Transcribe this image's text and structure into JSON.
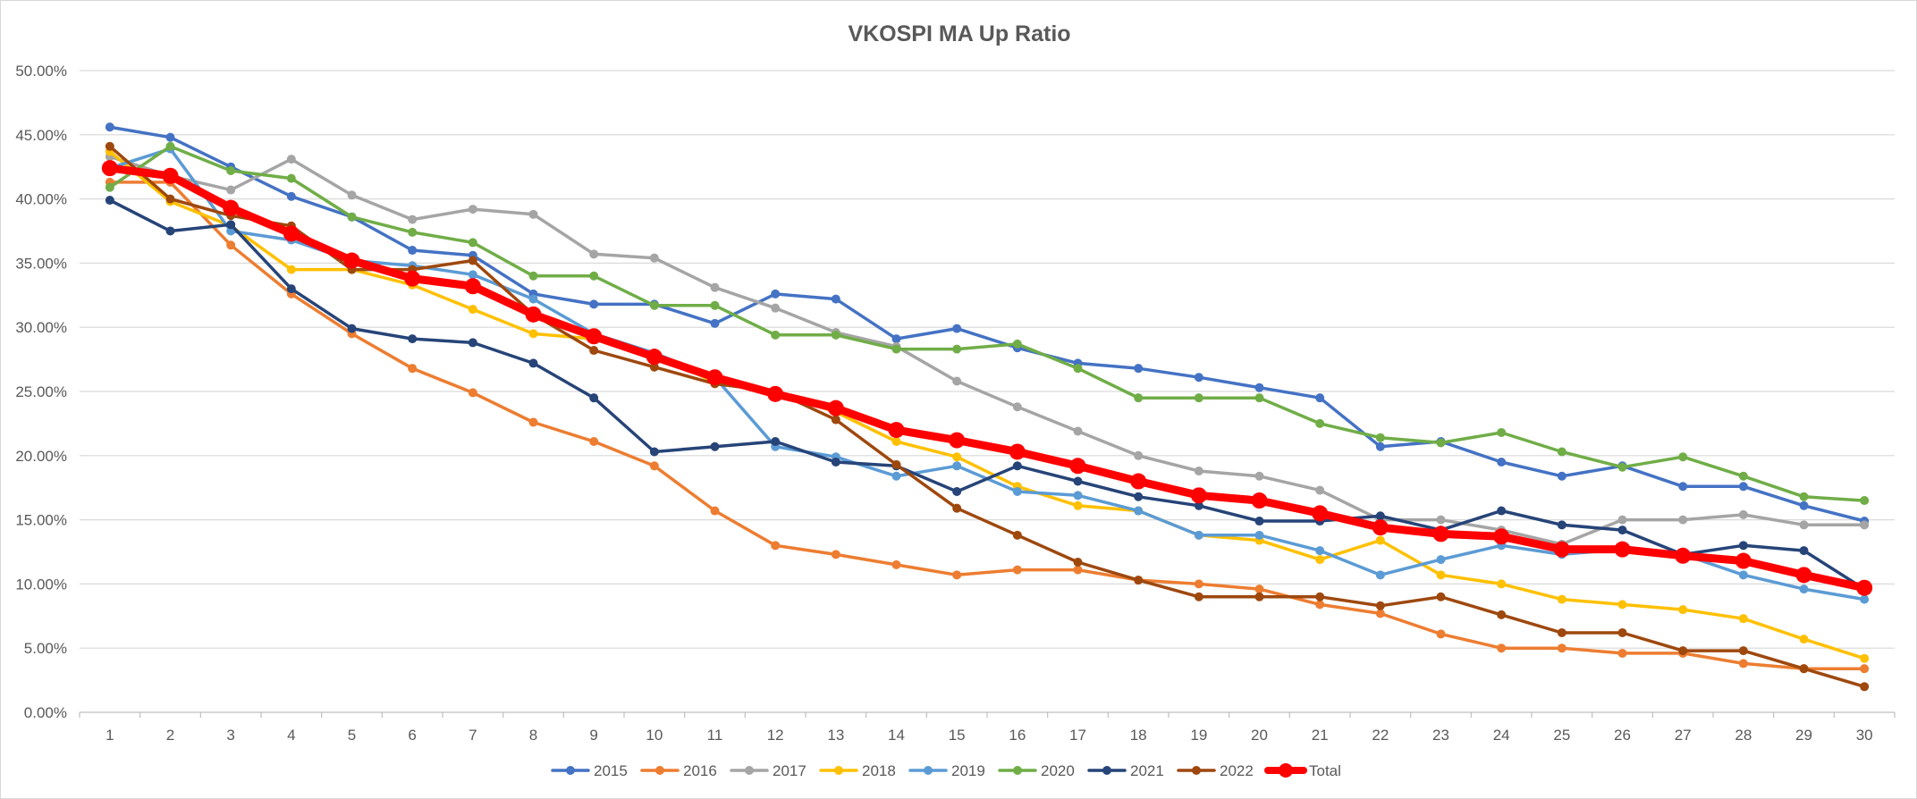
{
  "chart_data": {
    "type": "line",
    "title": "VKOSPI MA Up Ratio",
    "xlabel": "",
    "ylabel": "",
    "x": [
      1,
      2,
      3,
      4,
      5,
      6,
      7,
      8,
      9,
      10,
      11,
      12,
      13,
      14,
      15,
      16,
      17,
      18,
      19,
      20,
      21,
      22,
      23,
      24,
      25,
      26,
      27,
      28,
      29,
      30
    ],
    "ylim": [
      0,
      0.5
    ],
    "yticks": [
      0,
      0.05,
      0.1,
      0.15,
      0.2,
      0.25,
      0.3,
      0.35,
      0.4,
      0.45,
      0.5
    ],
    "ytick_labels": [
      "0.00%",
      "5.00%",
      "10.00%",
      "15.00%",
      "20.00%",
      "25.00%",
      "30.00%",
      "35.00%",
      "40.00%",
      "45.00%",
      "50.00%"
    ],
    "grid": true,
    "legend_position": "bottom",
    "series": [
      {
        "name": "2015",
        "color": "#4472C4",
        "values": [
          0.456,
          0.448,
          0.425,
          0.402,
          0.386,
          0.36,
          0.356,
          0.326,
          0.318,
          0.318,
          0.303,
          0.326,
          0.322,
          0.291,
          0.299,
          0.284,
          0.272,
          0.268,
          0.261,
          0.253,
          0.245,
          0.207,
          0.211,
          0.195,
          0.184,
          0.192,
          0.176,
          0.176,
          0.161,
          0.149
        ]
      },
      {
        "name": "2016",
        "color": "#ED7D31",
        "values": [
          0.413,
          0.413,
          0.364,
          0.326,
          0.295,
          0.268,
          0.249,
          0.226,
          0.211,
          0.192,
          0.157,
          0.13,
          0.123,
          0.115,
          0.107,
          0.111,
          0.111,
          0.103,
          0.1,
          0.096,
          0.084,
          0.077,
          0.061,
          0.05,
          0.05,
          0.046,
          0.046,
          0.038,
          0.034,
          0.034
        ]
      },
      {
        "name": "2017",
        "color": "#A5A5A5",
        "values": [
          0.433,
          0.418,
          0.407,
          0.431,
          0.403,
          0.384,
          0.392,
          0.388,
          0.357,
          0.354,
          0.331,
          0.315,
          0.296,
          0.285,
          0.258,
          0.238,
          0.219,
          0.2,
          0.188,
          0.184,
          0.173,
          0.15,
          0.15,
          0.142,
          0.131,
          0.15,
          0.15,
          0.154,
          0.146,
          0.146
        ]
      },
      {
        "name": "2018",
        "color": "#FFC000",
        "values": [
          0.437,
          0.398,
          0.379,
          0.345,
          0.345,
          0.333,
          0.314,
          0.295,
          0.291,
          0.28,
          0.257,
          0.249,
          0.234,
          0.211,
          0.199,
          0.176,
          0.161,
          0.157,
          0.138,
          0.134,
          0.119,
          0.134,
          0.107,
          0.1,
          0.088,
          0.084,
          0.08,
          0.073,
          0.057,
          0.042
        ]
      },
      {
        "name": "2019",
        "color": "#5B9BD5",
        "values": [
          0.424,
          0.439,
          0.375,
          0.368,
          0.352,
          0.348,
          0.341,
          0.322,
          0.295,
          0.28,
          0.261,
          0.207,
          0.199,
          0.184,
          0.192,
          0.172,
          0.169,
          0.157,
          0.138,
          0.138,
          0.126,
          0.107,
          0.119,
          0.13,
          0.123,
          0.127,
          0.123,
          0.107,
          0.096,
          0.088
        ]
      },
      {
        "name": "2020",
        "color": "#70AD47",
        "values": [
          0.409,
          0.441,
          0.422,
          0.416,
          0.386,
          0.374,
          0.366,
          0.34,
          0.34,
          0.317,
          0.317,
          0.294,
          0.294,
          0.283,
          0.283,
          0.287,
          0.268,
          0.245,
          0.245,
          0.245,
          0.225,
          0.214,
          0.21,
          0.218,
          0.203,
          0.191,
          0.199,
          0.184,
          0.168,
          0.165
        ]
      },
      {
        "name": "2021",
        "color": "#264478",
        "values": [
          0.399,
          0.375,
          0.38,
          0.33,
          0.299,
          0.291,
          0.288,
          0.272,
          0.245,
          0.203,
          0.207,
          0.211,
          0.195,
          0.192,
          0.172,
          0.192,
          0.18,
          0.168,
          0.161,
          0.149,
          0.149,
          0.153,
          0.142,
          0.157,
          0.146,
          0.142,
          0.123,
          0.13,
          0.126,
          0.096
        ]
      },
      {
        "name": "2022",
        "color": "#9E480E",
        "values": [
          0.441,
          0.4,
          0.387,
          0.379,
          0.345,
          0.345,
          0.352,
          0.31,
          0.282,
          0.269,
          0.256,
          0.25,
          0.228,
          0.193,
          0.159,
          0.138,
          0.117,
          0.103,
          0.09,
          0.09,
          0.09,
          0.083,
          0.09,
          0.076,
          0.062,
          0.062,
          0.048,
          0.048,
          0.034,
          0.02
        ]
      },
      {
        "name": "Total",
        "color": "#FF0000",
        "values": [
          0.424,
          0.418,
          0.393,
          0.373,
          0.352,
          0.338,
          0.332,
          0.31,
          0.293,
          0.277,
          0.261,
          0.248,
          0.237,
          0.22,
          0.212,
          0.203,
          0.192,
          0.18,
          0.169,
          0.165,
          0.155,
          0.144,
          0.139,
          0.137,
          0.127,
          0.127,
          0.122,
          0.118,
          0.107,
          0.097
        ]
      }
    ]
  }
}
